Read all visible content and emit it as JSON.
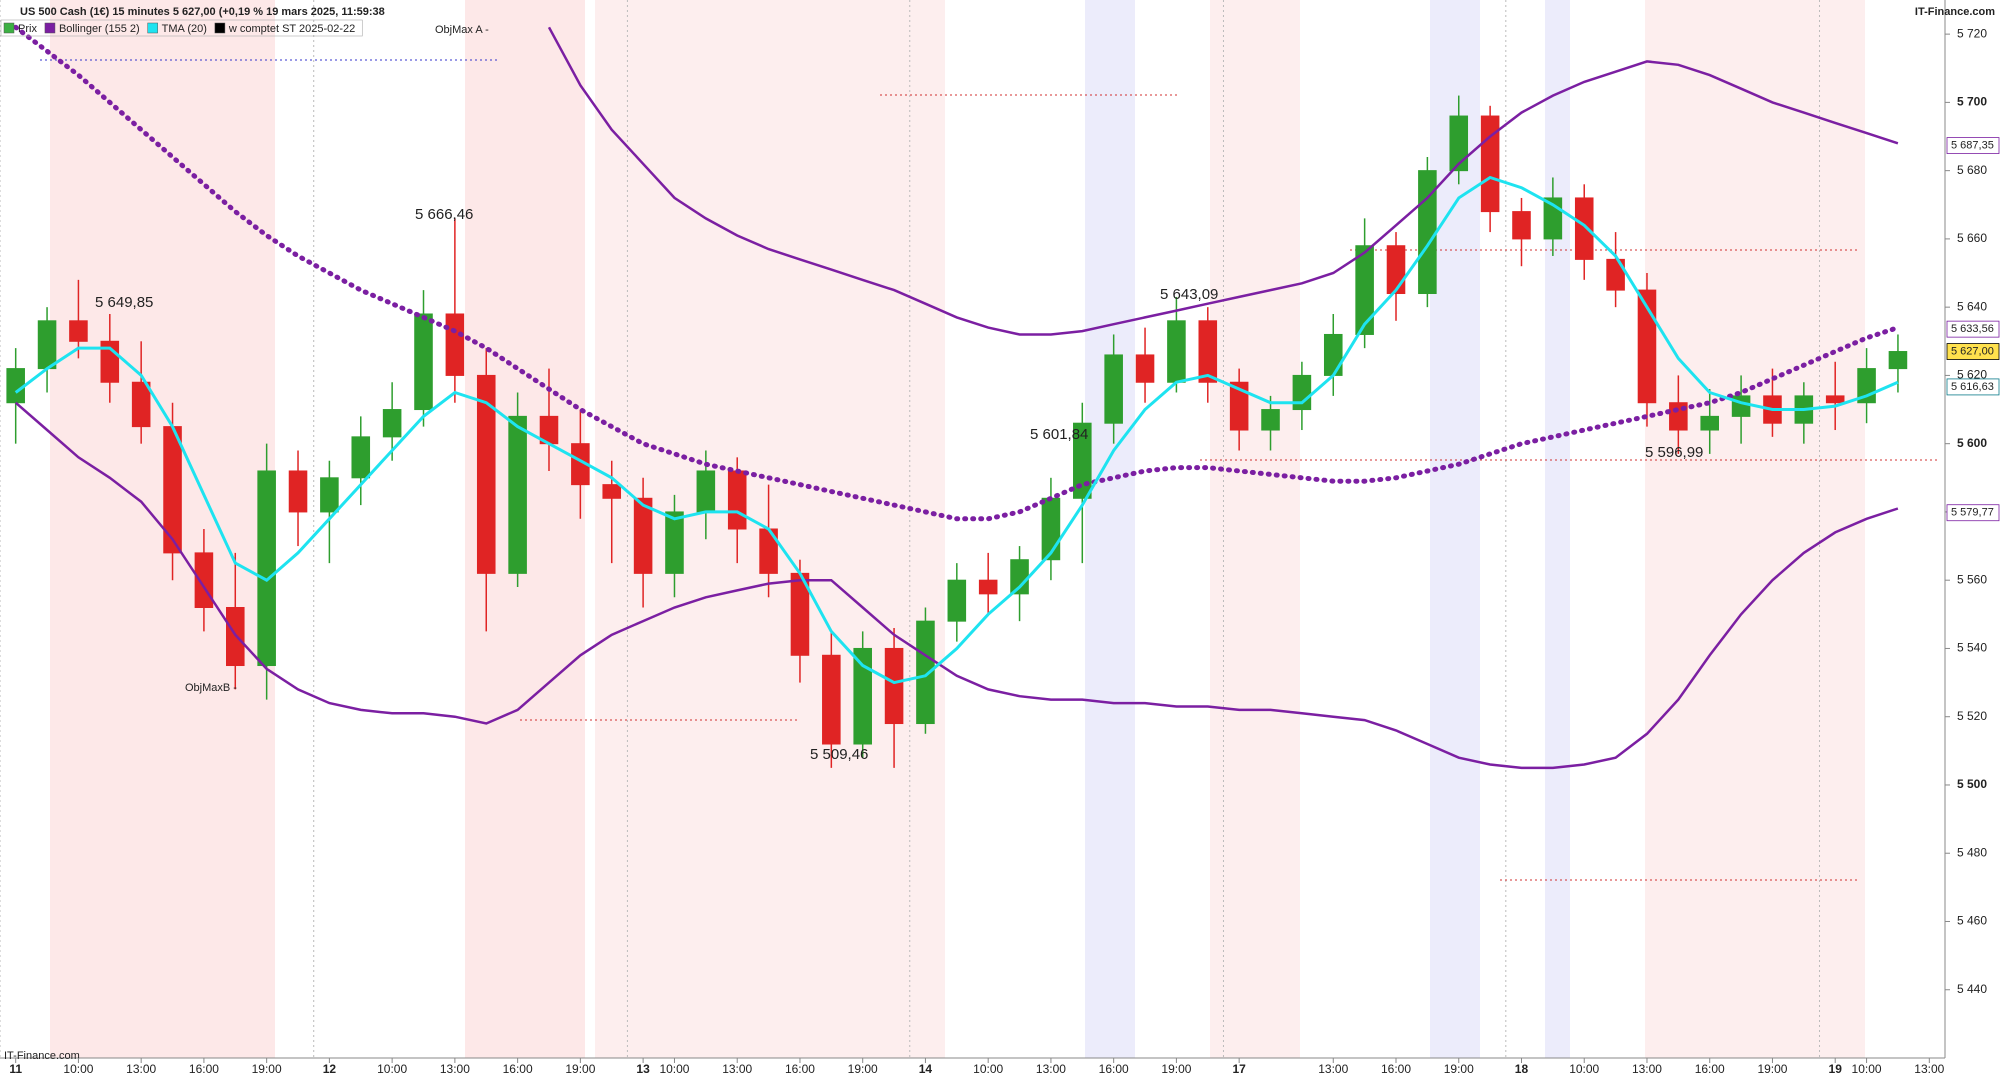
{
  "chart_data": {
    "type": "candlestick",
    "title": "US 500 Cash (1€) 15 minutes 5 627,00 (+0,19 % 19 mars 2025, 11:59:38",
    "source_top": "IT-Finance.com",
    "source_bottom": "IT-Finance.com",
    "categories": [
      "11",
      null,
      "10:00",
      null,
      "13:00",
      null,
      "16:00",
      null,
      "19:00",
      null,
      "12",
      null,
      "10:00",
      null,
      "13:00",
      null,
      "16:00",
      null,
      "19:00",
      null,
      "13",
      "10:00",
      null,
      "13:00",
      null,
      "16:00",
      null,
      "19:00",
      null,
      "14",
      null,
      "10:00",
      null,
      "13:00",
      null,
      "16:00",
      null,
      "19:00",
      null,
      "17",
      null,
      null,
      "13:00",
      null,
      "16:00",
      null,
      "19:00",
      null,
      "18",
      null,
      "10:00",
      null,
      "13:00",
      null,
      "16:00",
      null,
      "19:00",
      null,
      "19",
      "10:00",
      null,
      "13:00"
    ],
    "candles": {
      "name": "Prix",
      "color": "#3cb043",
      "up_color": "#2e9e2e",
      "down_color": "#e02424",
      "ohlc": [
        [
          5612,
          5628,
          5600,
          5622
        ],
        [
          5622,
          5640,
          5615,
          5636
        ],
        [
          5636,
          5648,
          5625,
          5630
        ],
        [
          5630,
          5638,
          5612,
          5618
        ],
        [
          5618,
          5630,
          5600,
          5605
        ],
        [
          5605,
          5612,
          5560,
          5568
        ],
        [
          5568,
          5575,
          5545,
          5552
        ],
        [
          5552,
          5568,
          5528,
          5535
        ],
        [
          5535,
          5600,
          5525,
          5592
        ],
        [
          5592,
          5598,
          5570,
          5580
        ],
        [
          5580,
          5595,
          5565,
          5590
        ],
        [
          5590,
          5608,
          5582,
          5602
        ],
        [
          5602,
          5618,
          5595,
          5610
        ],
        [
          5610,
          5645,
          5605,
          5638
        ],
        [
          5638,
          5666,
          5612,
          5620
        ],
        [
          5620,
          5628,
          5545,
          5562
        ],
        [
          5562,
          5615,
          5558,
          5608
        ],
        [
          5608,
          5622,
          5592,
          5600
        ],
        [
          5600,
          5610,
          5578,
          5588
        ],
        [
          5588,
          5595,
          5565,
          5584
        ],
        [
          5584,
          5590,
          5552,
          5562
        ],
        [
          5562,
          5585,
          5555,
          5580
        ],
        [
          5580,
          5598,
          5572,
          5592
        ],
        [
          5592,
          5596,
          5565,
          5575
        ],
        [
          5575,
          5588,
          5555,
          5562
        ],
        [
          5562,
          5566,
          5530,
          5538
        ],
        [
          5538,
          5545,
          5505,
          5512
        ],
        [
          5512,
          5545,
          5508,
          5540
        ],
        [
          5540,
          5546,
          5505,
          5518
        ],
        [
          5518,
          5552,
          5515,
          5548
        ],
        [
          5548,
          5565,
          5542,
          5560
        ],
        [
          5560,
          5568,
          5550,
          5556
        ],
        [
          5556,
          5570,
          5548,
          5566
        ],
        [
          5566,
          5590,
          5560,
          5584
        ],
        [
          5584,
          5612,
          5565,
          5606
        ],
        [
          5606,
          5632,
          5600,
          5626
        ],
        [
          5626,
          5634,
          5612,
          5618
        ],
        [
          5618,
          5643,
          5615,
          5636
        ],
        [
          5636,
          5640,
          5612,
          5618
        ],
        [
          5618,
          5622,
          5598,
          5604
        ],
        [
          5604,
          5614,
          5598,
          5610
        ],
        [
          5610,
          5624,
          5604,
          5620
        ],
        [
          5620,
          5638,
          5614,
          5632
        ],
        [
          5632,
          5666,
          5628,
          5658
        ],
        [
          5658,
          5662,
          5636,
          5644
        ],
        [
          5644,
          5684,
          5640,
          5680
        ],
        [
          5680,
          5702,
          5676,
          5696
        ],
        [
          5696,
          5699,
          5662,
          5668
        ],
        [
          5668,
          5672,
          5652,
          5660
        ],
        [
          5660,
          5678,
          5655,
          5672
        ],
        [
          5672,
          5676,
          5648,
          5654
        ],
        [
          5654,
          5662,
          5640,
          5645
        ],
        [
          5645,
          5650,
          5605,
          5612
        ],
        [
          5612,
          5620,
          5597,
          5604
        ],
        [
          5604,
          5616,
          5597,
          5608
        ],
        [
          5608,
          5620,
          5600,
          5614
        ],
        [
          5614,
          5622,
          5602,
          5606
        ],
        [
          5606,
          5618,
          5600,
          5614
        ],
        [
          5614,
          5624,
          5604,
          5612
        ],
        [
          5612,
          5628,
          5606,
          5622
        ],
        [
          5622,
          5632,
          5615,
          5627
        ],
        null
      ]
    },
    "series": [
      {
        "name": "Bollinger (155 2)",
        "color": "#7b1fa2",
        "upper": [
          null,
          null,
          null,
          null,
          null,
          null,
          null,
          null,
          null,
          null,
          null,
          null,
          null,
          null,
          null,
          null,
          null,
          5722,
          5705,
          5692,
          5682,
          5672,
          5666,
          5661,
          5657,
          5654,
          5651,
          5648,
          5645,
          5641,
          5637,
          5634,
          5632,
          5632,
          5633,
          5635,
          5637,
          5639,
          5641,
          5643,
          5645,
          5647,
          5650,
          5656,
          5664,
          5672,
          5682,
          5690,
          5697,
          5702,
          5706,
          5709,
          5712,
          5711,
          5708,
          5704,
          5700,
          5697,
          5694,
          5691,
          5688,
          null
        ],
        "middle": [
          5722,
          5715,
          5708,
          5700,
          5692,
          5684,
          5676,
          5668,
          5661,
          5655,
          5650,
          5645,
          5641,
          5637,
          5633,
          5628,
          5622,
          5616,
          5610,
          5605,
          5600,
          5597,
          5594,
          5592,
          5590,
          5588,
          5586,
          5584,
          5582,
          5580,
          5578,
          5578,
          5580,
          5584,
          5588,
          5590,
          5592,
          5593,
          5593,
          5592,
          5591,
          5590,
          5589,
          5589,
          5590,
          5592,
          5594,
          5597,
          5600,
          5602,
          5604,
          5606,
          5608,
          5610,
          5612,
          5615,
          5619,
          5623,
          5627,
          5631,
          5634,
          null
        ],
        "lower": [
          5612,
          5604,
          5596,
          5590,
          5583,
          5572,
          5558,
          5544,
          5534,
          5528,
          5524,
          5522,
          5521,
          5521,
          5520,
          5518,
          5522,
          5530,
          5538,
          5544,
          5548,
          5552,
          5555,
          5557,
          5559,
          5560,
          5560,
          5552,
          5544,
          5538,
          5532,
          5528,
          5526,
          5525,
          5525,
          5524,
          5524,
          5523,
          5523,
          5522,
          5522,
          5521,
          5520,
          5519,
          5516,
          5512,
          5508,
          5506,
          5505,
          5505,
          5506,
          5508,
          5515,
          5525,
          5538,
          5550,
          5560,
          5568,
          5574,
          5578,
          5581,
          null
        ]
      },
      {
        "name": "TMA (20)",
        "color": "#1ee3f0",
        "values": [
          5615,
          5622,
          5628,
          5628,
          5620,
          5605,
          5585,
          5565,
          5560,
          5568,
          5578,
          5588,
          5598,
          5608,
          5615,
          5612,
          5605,
          5600,
          5595,
          5590,
          5582,
          5578,
          5580,
          5580,
          5575,
          5562,
          5545,
          5535,
          5530,
          5532,
          5540,
          5550,
          5558,
          5568,
          5582,
          5598,
          5610,
          5618,
          5620,
          5616,
          5612,
          5612,
          5620,
          5635,
          5645,
          5658,
          5672,
          5678,
          5675,
          5670,
          5664,
          5655,
          5640,
          5625,
          5615,
          5612,
          5610,
          5610,
          5611,
          5614,
          5618,
          null
        ]
      }
    ],
    "extra_legend": {
      "name": "w comptet ST 2025-02-22",
      "color": "#000000"
    },
    "ylim": [
      5420,
      5730
    ],
    "yticks": [
      {
        "value": 5440,
        "label": "5 440"
      },
      {
        "value": 5460,
        "label": "5 460"
      },
      {
        "value": 5480,
        "label": "5 480"
      },
      {
        "value": 5500,
        "label": "5 500"
      },
      {
        "value": 5520,
        "label": "5 520"
      },
      {
        "value": 5540,
        "label": "5 540"
      },
      {
        "value": 5560,
        "label": "5 560"
      },
      {
        "value": 5580,
        "label": "5 580"
      },
      {
        "value": 5600,
        "label": "5 600"
      },
      {
        "value": 5620,
        "label": "5 620"
      },
      {
        "value": 5640,
        "label": "5 640"
      },
      {
        "value": 5660,
        "label": "5 660"
      },
      {
        "value": 5680,
        "label": "5 680"
      },
      {
        "value": 5700,
        "label": "5 700"
      },
      {
        "value": 5720,
        "label": "5 720"
      }
    ],
    "price_markers": [
      {
        "value": 5687.35,
        "label": "5 687,35",
        "color": "#7b1fa2",
        "bg": "#ffffff"
      },
      {
        "value": 5633.56,
        "label": "5 633,56",
        "color": "#7b1fa2",
        "bg": "#ffffff"
      },
      {
        "value": 5627,
        "label": "5 627,00",
        "color": "#000000",
        "bg": "#ffe14d"
      },
      {
        "value": 5616.63,
        "label": "5 616,63",
        "color": "#0a7a8a",
        "bg": "#ffffff"
      },
      {
        "value": 5579.77,
        "label": "5 579,77",
        "color": "#7b1fa2",
        "bg": "#ffffff"
      }
    ],
    "annotations": [
      "5 666,46",
      "5 643,09",
      "5 601,84",
      "5 596,99",
      "5 649,85",
      "5 509,46",
      "ObjMax A -",
      "ObjMaxB -"
    ],
    "grid": false
  }
}
